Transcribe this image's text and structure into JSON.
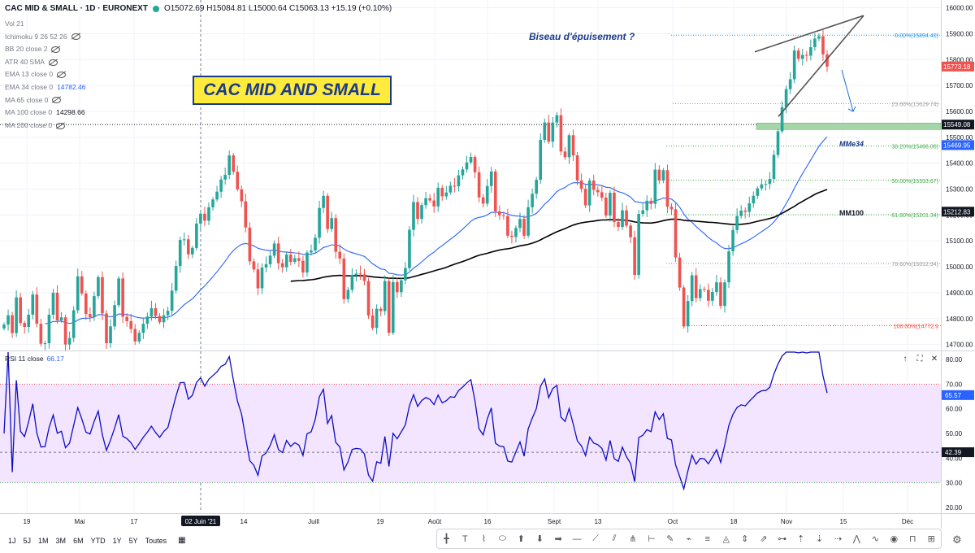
{
  "header": {
    "symbol": "CAC MID & SMALL · 1D · EURONEXT",
    "ohlc": "O15072.69 H15084.81 L15000.64 C15063.13 +15.19 (+0.10%)"
  },
  "indicators": [
    {
      "label": "Vol 21",
      "value": ""
    },
    {
      "label": "Ichimoku 9 26 52 26",
      "value": ""
    },
    {
      "label": "BB 20 close 2",
      "value": ""
    },
    {
      "label": "ATR 40 SMA",
      "value": ""
    },
    {
      "label": "EMA 13 close 0",
      "value": ""
    },
    {
      "label": "EMA 34 close 0",
      "value": "14782.46"
    },
    {
      "label": "MA 65 close 0",
      "value": ""
    },
    {
      "label": "MA 100 close 0",
      "value": "14298.66"
    },
    {
      "label": "MA 200 close 0",
      "value": ""
    }
  ],
  "title_box": "CAC MID AND SMALL",
  "annotation": "Biseau d'épuisement ?",
  "rsi": {
    "label": "RSI 11 close",
    "value": "66.17"
  },
  "bottom": {
    "ranges": [
      "1J",
      "5J",
      "1M",
      "3M",
      "6M",
      "YTD",
      "1Y",
      "5Y",
      "Toutes"
    ]
  },
  "tool_icons": [
    "cursor-icon",
    "text-icon",
    "path-icon",
    "ellipse-icon",
    "arrow-up-icon",
    "arrow-down-icon",
    "arrow-right-icon",
    "horizontal-ray-icon",
    "trend-line-icon",
    "parallel-channel-icon",
    "pitchfork-icon",
    "ruler-icon",
    "brush-icon",
    "pattern-icon",
    "fib-icon",
    "gann-icon",
    "price-range-icon",
    "projection-icon",
    "measure-icon",
    "long-position-icon",
    "short-position-icon",
    "forecast-icon",
    "zigzag-icon",
    "wave-icon",
    "eye-icon",
    "magnet-icon",
    "lock-icon"
  ],
  "chart_data": [
    {
      "type": "candlestick",
      "title": "CAC MID & SMALL · 1D · EURONEXT",
      "price_axis": {
        "ticks": [
          14700,
          14800,
          14900,
          15000,
          15100,
          15200,
          15300,
          15400,
          15500,
          15600,
          15700,
          15800,
          15900,
          16000
        ],
        "ylim": [
          14680,
          16030
        ]
      },
      "x_ticks": [
        "19",
        "Mai",
        "17",
        "02 Juin '21",
        "14",
        "Juill",
        "19",
        "Août",
        "16",
        "Sept",
        "13",
        "Oct",
        "18",
        "Nov",
        "15",
        "Déc"
      ],
      "price_labels": [
        {
          "value": 15773.18,
          "color": "#ef5350",
          "text": "15773.18"
        },
        {
          "value": 15549.08,
          "color": "#131722",
          "text": "15549.08"
        },
        {
          "value": 15469.95,
          "color": "#2962ff",
          "text": "15469.95"
        },
        {
          "value": 15212.83,
          "color": "#131722",
          "text": "15212.83"
        }
      ],
      "fib_levels": [
        {
          "label": "0.00%(15894.40)",
          "value": 15894.4,
          "color": "#2196f3"
        },
        {
          "label": "23.60%(15629.74)",
          "value": 15629.74,
          "color": "#9e9e9e"
        },
        {
          "label": "38.20%(15466.00)",
          "value": 15466.0,
          "color": "#4caf50"
        },
        {
          "label": "50.00%(15333.67)",
          "value": 15333.67,
          "color": "#4caf50"
        },
        {
          "label": "61.80%(15201.34)",
          "value": 15201.34,
          "color": "#4caf50"
        },
        {
          "label": "78.60%(15012.94)",
          "value": 15012.94,
          "color": "#9e9e9e"
        },
        {
          "label": "100.00%(14772.9",
          "value": 14772.9,
          "color": "#f44336"
        }
      ],
      "ma_labels": [
        "MMe34",
        "MM100"
      ],
      "support_zone": [
        15530,
        15555
      ],
      "candles_close": [
        14777,
        14813,
        14744,
        14882,
        14783,
        14768,
        14815,
        14893,
        14780,
        14703,
        14705,
        14815,
        14900,
        14793,
        14805,
        14700,
        14725,
        14832,
        14963,
        14897,
        14818,
        14806,
        14887,
        14960,
        14820,
        14705,
        14770,
        14852,
        14955,
        14807,
        14790,
        14760,
        14712,
        14745,
        14780,
        14808,
        14840,
        14810,
        14786,
        14813,
        14830,
        14908,
        15003,
        15104,
        15106,
        15048,
        15073,
        15167,
        15205,
        15178,
        15230,
        15260,
        15290,
        15337,
        15355,
        15430,
        15367,
        15299,
        15253,
        15152,
        15021,
        14990,
        14917,
        14997,
        15010,
        15043,
        15090,
        15014,
        14998,
        15047,
        15019,
        15033,
        15023,
        14978,
        15055,
        15063,
        15112,
        15227,
        15274,
        15146,
        15188,
        15058,
        15032,
        14875,
        14911,
        14969,
        14974,
        14971,
        14945,
        14812,
        14764,
        14838,
        14829,
        14945,
        14745,
        14941,
        14902,
        14948,
        14995,
        15143,
        15250,
        15185,
        15238,
        15265,
        15256,
        15233,
        15305,
        15272,
        15287,
        15313,
        15311,
        15353,
        15376,
        15403,
        15424,
        15365,
        15268,
        15244,
        15312,
        15368,
        15214,
        15199,
        15196,
        15120,
        15115,
        15150,
        15185,
        15120,
        15230,
        15282,
        15336,
        15490,
        15557,
        15483,
        15557,
        15585,
        15445,
        15423,
        15508,
        15430,
        15333,
        15301,
        15237,
        15333,
        15297,
        15288,
        15267,
        15198,
        15286,
        15173,
        15154,
        15218,
        15159,
        15114,
        14969,
        15204,
        15218,
        15255,
        15243,
        15375,
        15333,
        15373,
        15232,
        15222,
        15036,
        14920,
        14770,
        14868,
        14967,
        14879,
        14914,
        14911,
        14869,
        14903,
        14940,
        14849,
        14940,
        15060,
        15142,
        15196,
        15217,
        15212,
        15245,
        15274,
        15303,
        15318,
        15320,
        15339,
        15432,
        15523,
        15616,
        15686,
        15724,
        15835,
        15803,
        15818,
        15815,
        15848,
        15881,
        15890,
        15820,
        15773
      ]
    },
    {
      "type": "line",
      "title": "RSI 11 close",
      "y_ticks": [
        20,
        30,
        40,
        50,
        60,
        70,
        80
      ],
      "ylim": [
        18,
        83
      ],
      "bands": [
        30,
        70
      ],
      "labels": [
        {
          "value": 65.57,
          "color": "#2962ff",
          "text": "65.57"
        },
        {
          "value": 42.39,
          "color": "#131722",
          "text": "42.39"
        }
      ]
    }
  ]
}
